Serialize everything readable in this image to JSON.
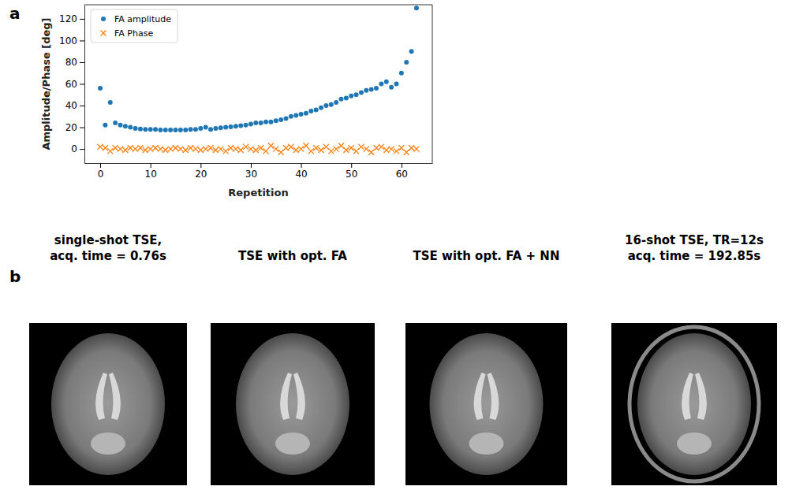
{
  "panel_labels": [
    "a",
    "b"
  ],
  "chart_data": {
    "type": "scatter",
    "x_label": "Repetition",
    "y_label": "Amplitude/Phase [deg]",
    "x": [
      0,
      1,
      2,
      3,
      4,
      5,
      6,
      7,
      8,
      9,
      10,
      11,
      12,
      13,
      14,
      15,
      16,
      17,
      18,
      19,
      20,
      21,
      22,
      23,
      24,
      25,
      26,
      27,
      28,
      29,
      30,
      31,
      32,
      33,
      34,
      35,
      36,
      37,
      38,
      39,
      40,
      41,
      42,
      43,
      44,
      45,
      46,
      47,
      48,
      49,
      50,
      51,
      52,
      53,
      54,
      55,
      56,
      57,
      58,
      59,
      60,
      61,
      62,
      63
    ],
    "series": [
      {
        "name": "FA amplitude",
        "color": "#1f77b4",
        "marker": "o",
        "values": [
          56,
          22,
          43,
          24,
          22,
          21,
          20,
          19,
          18.5,
          18,
          18,
          18,
          17.5,
          17.5,
          17.5,
          17.5,
          17.5,
          17.5,
          18,
          18,
          19,
          20,
          18,
          19,
          19.5,
          20,
          20.5,
          21,
          21.5,
          22,
          23,
          24,
          24,
          25,
          25,
          26,
          27,
          28,
          30,
          31,
          32,
          33,
          35,
          36,
          38,
          40,
          41,
          43,
          46,
          47,
          49,
          50,
          52,
          54,
          55,
          56,
          60,
          62,
          57,
          60,
          70,
          80,
          90,
          130
        ]
      },
      {
        "name": "FA Phase",
        "color": "#ff7f0e",
        "marker": "x",
        "values": [
          2,
          1,
          -2,
          1,
          0,
          -1,
          1,
          0,
          1,
          -1,
          0,
          1,
          0,
          -1,
          0,
          1,
          0,
          -1,
          1,
          0,
          -1,
          0,
          1,
          -1,
          0,
          -2,
          1,
          0,
          -1,
          2,
          0,
          -1,
          1,
          -2,
          3,
          0,
          -3,
          1,
          2,
          -1,
          0,
          3,
          -2,
          1,
          -1,
          2,
          -2,
          0,
          3,
          -1,
          1,
          -2,
          2,
          0,
          -3,
          1,
          2,
          -1,
          0,
          -2,
          1,
          -3,
          1,
          0
        ]
      }
    ],
    "xlim": [
      -3.15,
      66.15
    ],
    "ylim": [
      -13,
      133
    ],
    "xticks": [
      0,
      10,
      20,
      30,
      40,
      50,
      60
    ],
    "yticks": [
      0,
      20,
      40,
      60,
      80,
      100,
      120
    ],
    "legend": "upper left"
  },
  "images": [
    {
      "title_lines": [
        "single-shot TSE,",
        "acq. time = 0.76s"
      ]
    },
    {
      "title_lines": [
        "TSE with opt. FA"
      ]
    },
    {
      "title_lines": [
        "TSE with opt. FA + NN"
      ]
    },
    {
      "title_lines": [
        "16-shot TSE, TR=12s",
        "acq. time = 192.85s"
      ]
    }
  ]
}
